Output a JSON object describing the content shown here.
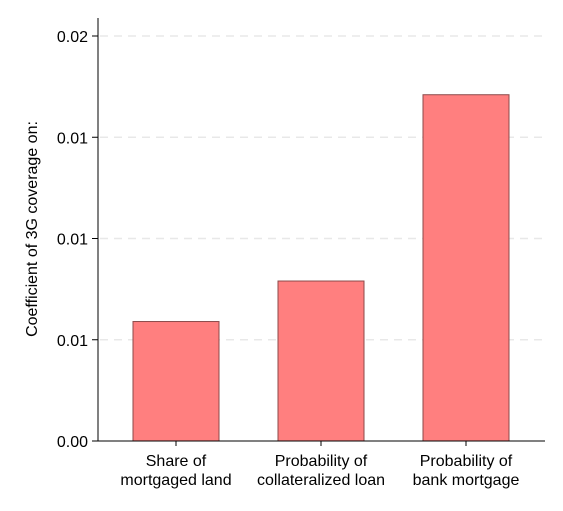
{
  "chart_data": {
    "type": "bar",
    "title": "",
    "xlabel": "",
    "ylabel": "Coefficient of 3G coverage on:",
    "categories": [
      [
        "Share of",
        "mortgaged land"
      ],
      [
        "Probability of",
        "collateralized loan"
      ],
      [
        "Probability of",
        "bank mortgage"
      ]
    ],
    "values": [
      0.0059,
      0.0079,
      0.0171
    ],
    "ylim": [
      0,
      0.02
    ],
    "yticks": [
      0,
      0.005,
      0.01,
      0.015,
      0.02
    ],
    "ytick_labels": [
      "0.00",
      "0.01",
      "0.01",
      "0.01",
      "0.02"
    ],
    "grid": true,
    "legend": "none",
    "colors": {
      "bar_fill": "#ff7f7f",
      "bar_stroke": "#8c4a4a",
      "grid": "#e8e8e8",
      "axis": "#000000"
    }
  }
}
